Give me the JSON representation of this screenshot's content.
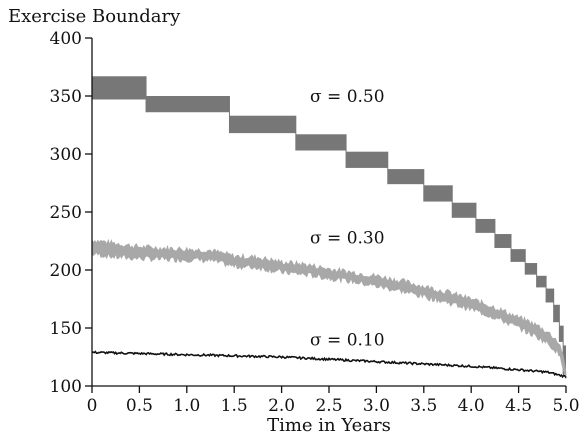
{
  "chart_data": {
    "type": "line",
    "title": "Exercise Boundary",
    "xlabel": "Time in Years",
    "ylabel": "",
    "xlim": [
      0,
      5
    ],
    "ylim": [
      100,
      400
    ],
    "xticks": [
      0,
      0.5,
      1.0,
      1.5,
      2.0,
      2.5,
      3.0,
      3.5,
      4.0,
      4.5,
      5.0
    ],
    "xtick_labels": [
      "0",
      "0.5",
      "1.0",
      "1.5",
      "2.0",
      "2.5",
      "3.0",
      "3.5",
      "4.0",
      "4.5",
      "5.0"
    ],
    "yticks": [
      100,
      150,
      200,
      250,
      300,
      350,
      400
    ],
    "ytick_labels": [
      "100",
      "150",
      "200",
      "250",
      "300",
      "350",
      "400"
    ],
    "grid": false,
    "legend": "none",
    "series": [
      {
        "label": "σ = 0.50",
        "label_position": [
          2.3,
          345
        ],
        "color": "#777777",
        "style": "stepped-band",
        "steps": [
          {
            "x0": 0.0,
            "x1": 0.57,
            "lo": 347,
            "hi": 367
          },
          {
            "x0": 0.57,
            "x1": 1.45,
            "lo": 336,
            "hi": 350
          },
          {
            "x0": 1.45,
            "x1": 2.15,
            "lo": 318,
            "hi": 333
          },
          {
            "x0": 2.15,
            "x1": 2.68,
            "lo": 303,
            "hi": 317
          },
          {
            "x0": 2.68,
            "x1": 3.12,
            "lo": 288,
            "hi": 302
          },
          {
            "x0": 3.12,
            "x1": 3.5,
            "lo": 274,
            "hi": 287
          },
          {
            "x0": 3.5,
            "x1": 3.8,
            "lo": 259,
            "hi": 273
          },
          {
            "x0": 3.8,
            "x1": 4.05,
            "lo": 245,
            "hi": 258
          },
          {
            "x0": 4.05,
            "x1": 4.25,
            "lo": 232,
            "hi": 244
          },
          {
            "x0": 4.25,
            "x1": 4.42,
            "lo": 219,
            "hi": 231
          },
          {
            "x0": 4.42,
            "x1": 4.57,
            "lo": 207,
            "hi": 218
          },
          {
            "x0": 4.57,
            "x1": 4.69,
            "lo": 196,
            "hi": 206
          },
          {
            "x0": 4.69,
            "x1": 4.79,
            "lo": 185,
            "hi": 195
          },
          {
            "x0": 4.79,
            "x1": 4.87,
            "lo": 172,
            "hi": 184
          },
          {
            "x0": 4.87,
            "x1": 4.93,
            "lo": 155,
            "hi": 170
          },
          {
            "x0": 4.93,
            "x1": 4.97,
            "lo": 138,
            "hi": 152
          },
          {
            "x0": 4.97,
            "x1": 5.0,
            "lo": 110,
            "hi": 135
          }
        ]
      },
      {
        "label": "σ = 0.30",
        "label_position": [
          2.3,
          223
        ],
        "color": "#a8a8a8",
        "style": "noisy-band",
        "x": [
          0,
          0.25,
          0.5,
          0.75,
          1.0,
          1.25,
          1.5,
          1.75,
          2.0,
          2.25,
          2.5,
          2.75,
          3.0,
          3.25,
          3.5,
          3.75,
          4.0,
          4.25,
          4.5,
          4.6,
          4.7,
          4.8,
          4.9,
          4.95,
          5.0
        ],
        "lo": [
          214,
          211,
          210,
          209,
          209,
          208,
          203,
          202,
          198,
          196,
          193,
          190,
          186,
          182,
          177,
          172,
          166,
          159,
          150,
          146,
          142,
          137,
          130,
          122,
          108
        ],
        "hi": [
          226,
          223,
          220,
          219,
          218,
          217,
          212,
          211,
          207,
          205,
          201,
          198,
          195,
          191,
          186,
          181,
          175,
          168,
          159,
          156,
          152,
          147,
          140,
          133,
          112
        ]
      },
      {
        "label": "σ = 0.10",
        "label_position": [
          2.3,
          135
        ],
        "color": "#111111",
        "style": "line",
        "x": [
          0,
          0.5,
          1.0,
          1.5,
          2.0,
          2.5,
          3.0,
          3.5,
          4.0,
          4.5,
          4.8,
          5.0
        ],
        "y": [
          129,
          128,
          127,
          126,
          125,
          123,
          121,
          119,
          117,
          114,
          112,
          108
        ]
      }
    ]
  }
}
